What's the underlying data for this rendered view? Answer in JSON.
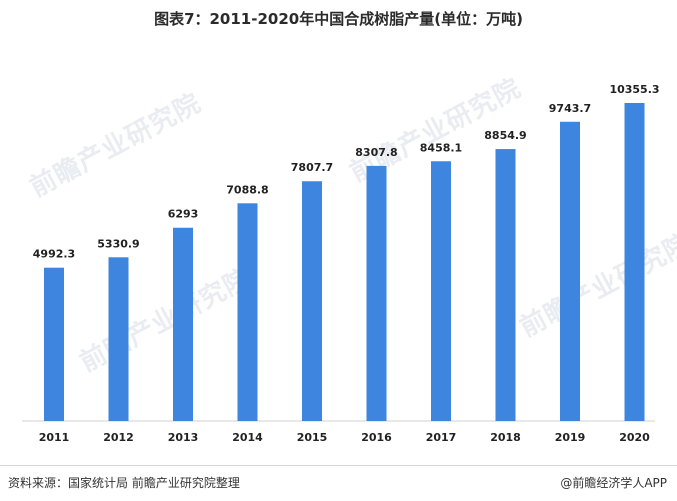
{
  "chart_data": {
    "type": "bar",
    "title": "图表7：2011-2020年中国合成树脂产量(单位：万吨)",
    "categories": [
      "2011",
      "2012",
      "2013",
      "2014",
      "2015",
      "2016",
      "2017",
      "2018",
      "2019",
      "2020"
    ],
    "values": [
      4992.3,
      5330.9,
      6293,
      7088.8,
      7807.7,
      8307.8,
      8458.1,
      8854.9,
      9743.7,
      10355.3
    ],
    "value_labels": [
      "4992.3",
      "5330.9",
      "6293",
      "7088.8",
      "7807.7",
      "8307.8",
      "8458.1",
      "8854.9",
      "9743.7",
      "10355.3"
    ],
    "ylim": [
      0,
      10355.3
    ],
    "grid": false,
    "bar_color": "#3d85de"
  },
  "watermark": "前瞻产业研究院",
  "footer": {
    "source": "资料来源：国家统计局 前瞻产业研究院整理",
    "brand": "@前瞻经济学人APP"
  }
}
